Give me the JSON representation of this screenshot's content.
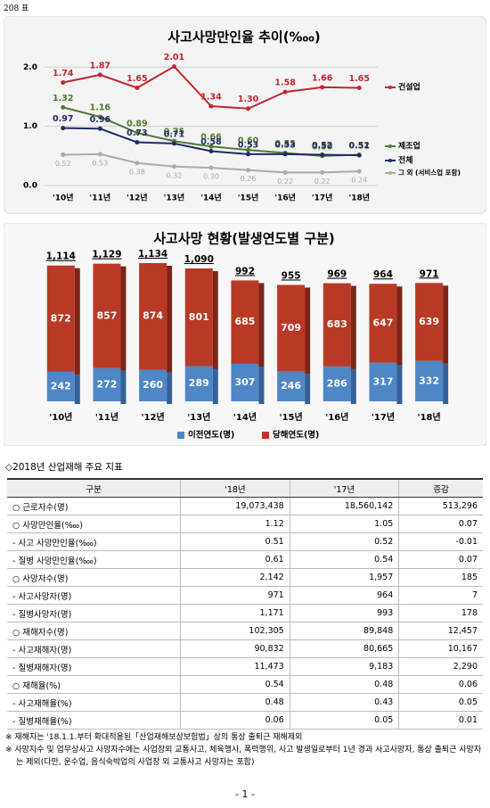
{
  "header": "208 표",
  "chart_data": [
    {
      "type": "line",
      "title": "사고사망만인율 추이(‱)",
      "categories": [
        "'10년",
        "'11년",
        "'12년",
        "'13년",
        "'14년",
        "'15년",
        "'16년",
        "'17년",
        "'18년"
      ],
      "ylim": [
        0,
        2.2
      ],
      "yticks": [
        {
          "value": 0,
          "label": "0.0"
        },
        {
          "value": 1,
          "label": "1.0"
        },
        {
          "value": 2,
          "label": "2.0"
        }
      ],
      "grid": true,
      "series": [
        {
          "name": "건설업",
          "color": "#c0272d",
          "values": [
            1.74,
            1.87,
            1.65,
            2.01,
            1.34,
            1.3,
            1.58,
            1.66,
            1.65
          ],
          "value_labels": [
            "1.74",
            "1.87",
            "1.65",
            "2.01",
            "1.34",
            "1.30",
            "1.58",
            "1.66",
            "1.65"
          ]
        },
        {
          "name": "제조업",
          "color": "#4e7a2e",
          "values": [
            1.32,
            1.16,
            0.89,
            0.75,
            0.66,
            0.6,
            0.55,
            0.5,
            0.52
          ],
          "value_labels": [
            "1.32",
            "1.16",
            "0.89",
            "0.75",
            "0.66",
            "0.60",
            "0.55",
            "0.50",
            "0.52"
          ]
        },
        {
          "name": "전체",
          "color": "#1f2a6b",
          "values": [
            0.97,
            0.96,
            0.73,
            0.71,
            0.58,
            0.53,
            0.53,
            0.52,
            0.51
          ],
          "value_labels": [
            "0.97",
            "0.96",
            "0.73",
            "0.71",
            "0.58",
            "0.53",
            "0.53",
            "0.52",
            "0.51"
          ]
        },
        {
          "name": "그 외 (서비스업 포함)",
          "color": "#aaaaaa",
          "values": [
            0.52,
            0.53,
            0.38,
            0.32,
            0.3,
            0.26,
            0.22,
            0.22,
            0.24
          ],
          "value_labels": [
            "0.52",
            "0.53",
            "0.38",
            "0.32",
            "0.30",
            "0.26",
            "0.22",
            "0.22",
            "0.24"
          ]
        }
      ]
    },
    {
      "type": "stacked_bar",
      "title": "사고사망 현황(발생연도별 구분)",
      "categories": [
        "'10년",
        "'11년",
        "'12년",
        "'13년",
        "'14년",
        "'15년",
        "'16년",
        "'17년",
        "'18년"
      ],
      "series": [
        {
          "name": "이전연도(명)",
          "color": "#4f86c6",
          "values": [
            242,
            272,
            260,
            289,
            307,
            246,
            286,
            317,
            332
          ]
        },
        {
          "name": "당해연도(명)",
          "color": "#b83a26",
          "values": [
            872,
            857,
            874,
            801,
            685,
            709,
            683,
            647,
            639
          ]
        }
      ],
      "totals": [
        1114,
        1129,
        1134,
        1090,
        992,
        955,
        969,
        964,
        971
      ],
      "total_labels": [
        "1,114",
        "1,129",
        "1,134",
        "1,090",
        "992",
        "955",
        "969",
        "964",
        "971"
      ]
    }
  ],
  "section_title": "◇2018년 산업재해 주요 지표",
  "table": {
    "columns": [
      "구분",
      "'18년",
      "'17년",
      "증감"
    ],
    "rows": [
      [
        "○ 근로자수(명)",
        "19,073,438",
        "18,560,142",
        "513,296"
      ],
      [
        "○ 사망만인율(‱)",
        "1.12",
        "1.05",
        "0.07"
      ],
      [
        "- 사고 사망만인율(‱)",
        "0.51",
        "0.52",
        "-0.01"
      ],
      [
        "- 질병 사망만인율(‱)",
        "0.61",
        "0.54",
        "0.07"
      ],
      [
        "○ 사망자수(명)",
        "2,142",
        "1,957",
        "185"
      ],
      [
        "- 사고사망자(명)",
        "971",
        "964",
        "7"
      ],
      [
        "- 질병사망자(명)",
        "1,171",
        "993",
        "178"
      ],
      [
        "○ 재해자수(명)",
        "102,305",
        "89,848",
        "12,457"
      ],
      [
        "- 사고재해자(명)",
        "90,832",
        "80,665",
        "10,167"
      ],
      [
        "- 질병재해자(명)",
        "11,473",
        "9,183",
        "2,290"
      ],
      [
        "○ 재해율(%)",
        "0.54",
        "0.48",
        "0.06"
      ],
      [
        "- 사고재해율(%)",
        "0.48",
        "0.43",
        "0.05"
      ],
      [
        "- 질병재해율(%)",
        "0.06",
        "0.05",
        "0.01"
      ]
    ]
  },
  "notes": [
    "※ 재해자는 '18.1.1.부터 확대적용된「산업재해보상보험법」상의 통상 출퇴근 재해제외",
    "※ 사망자수 및 업무상사고 사망자수에는 사업장외 교통사고, 체육행사, 폭력행위, 사고 발생일로부터 1년 경과 사고사망자, 통상 출퇴근 사망자는 제외(다만, 운수업, 음식숙박업의 사업장 외 교통사고 사망자는 포함)"
  ],
  "page_number": "- 1 -"
}
